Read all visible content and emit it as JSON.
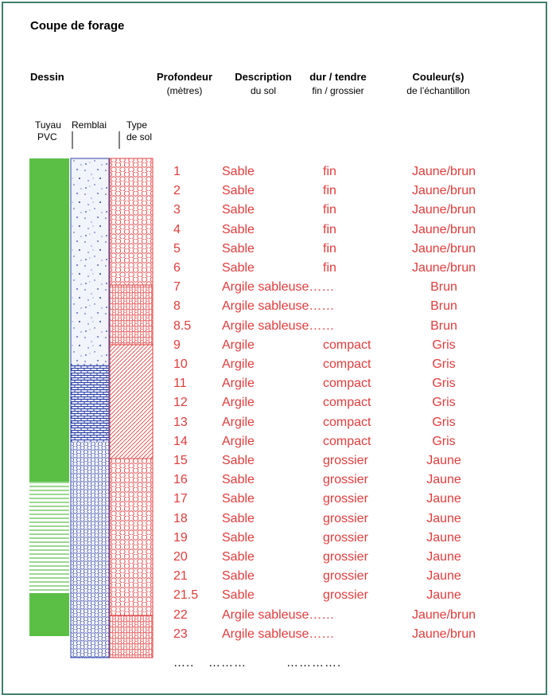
{
  "title": "Coupe de forage",
  "headers": {
    "drawing": "Dessin",
    "depth": "Profondeur",
    "depth_sub": "(mètres)",
    "description": "Description",
    "description_sub": "du sol",
    "hardness": "dur / tendre",
    "hardness_sub": "fin / grossier",
    "color": "Couleur(s)",
    "color_sub": "de l’échantillon"
  },
  "column_labels": {
    "pipe_line1": "Tuyau",
    "pipe_line2": "PVC",
    "backfill": "Remblai",
    "soil_line1": "Type",
    "soil_line2": "de sol"
  },
  "colors": {
    "row_text": "#e03c3c",
    "pipe_green": "#5bbf46",
    "backfill_blue": "#2a3fa8",
    "soil_red": "#e03c3c"
  },
  "rows": [
    {
      "depth": "1",
      "description": "Sable",
      "hardness": "fin",
      "color": "Jaune/brun"
    },
    {
      "depth": "2",
      "description": "Sable",
      "hardness": "fin",
      "color": "Jaune/brun"
    },
    {
      "depth": "3",
      "description": "Sable",
      "hardness": "fin",
      "color": "Jaune/brun"
    },
    {
      "depth": "4",
      "description": "Sable",
      "hardness": "fin",
      "color": "Jaune/brun"
    },
    {
      "depth": "5",
      "description": "Sable",
      "hardness": "fin",
      "color": "Jaune/brun"
    },
    {
      "depth": "6",
      "description": "Sable",
      "hardness": "fin",
      "color": "Jaune/brun"
    },
    {
      "depth": "7",
      "description": "Argile sableuse……",
      "hardness": "",
      "color": "Brun"
    },
    {
      "depth": "8",
      "description": "Argile sableuse……",
      "hardness": "",
      "color": "Brun"
    },
    {
      "depth": "8.5",
      "description": "Argile sableuse……",
      "hardness": "",
      "color": "Brun"
    },
    {
      "depth": "9",
      "description": "Argile",
      "hardness": "compact",
      "color": "Gris"
    },
    {
      "depth": "10",
      "description": "Argile",
      "hardness": "compact",
      "color": "Gris"
    },
    {
      "depth": "11",
      "description": "Argile",
      "hardness": "compact",
      "color": "Gris"
    },
    {
      "depth": "12",
      "description": "Argile",
      "hardness": "compact",
      "color": "Gris"
    },
    {
      "depth": "13",
      "description": "Argile",
      "hardness": "compact",
      "color": "Gris"
    },
    {
      "depth": "14",
      "description": "Argile",
      "hardness": "compact",
      "color": "Gris"
    },
    {
      "depth": "15",
      "description": "Sable",
      "hardness": "grossier",
      "color": "Jaune"
    },
    {
      "depth": "16",
      "description": "Sable",
      "hardness": "grossier",
      "color": "Jaune"
    },
    {
      "depth": "17",
      "description": "Sable",
      "hardness": "grossier",
      "color": "Jaune"
    },
    {
      "depth": "18",
      "description": "Sable",
      "hardness": "grossier",
      "color": "Jaune"
    },
    {
      "depth": "19",
      "description": "Sable",
      "hardness": "grossier",
      "color": "Jaune"
    },
    {
      "depth": "20",
      "description": "Sable",
      "hardness": "grossier",
      "color": "Jaune"
    },
    {
      "depth": "21",
      "description": "Sable",
      "hardness": "grossier",
      "color": "Jaune"
    },
    {
      "depth": "21.5",
      "description": "Sable",
      "hardness": "grossier",
      "color": "Jaune"
    },
    {
      "depth": "22",
      "description": "Argile sableuse……",
      "hardness": "",
      "color": "Jaune/brun"
    },
    {
      "depth": "23",
      "description": "Argile sableuse……",
      "hardness": "",
      "color": "Jaune/brun"
    }
  ],
  "trailing_dots": {
    "depth": "…..",
    "description": "………",
    "hardness": "…………."
  }
}
